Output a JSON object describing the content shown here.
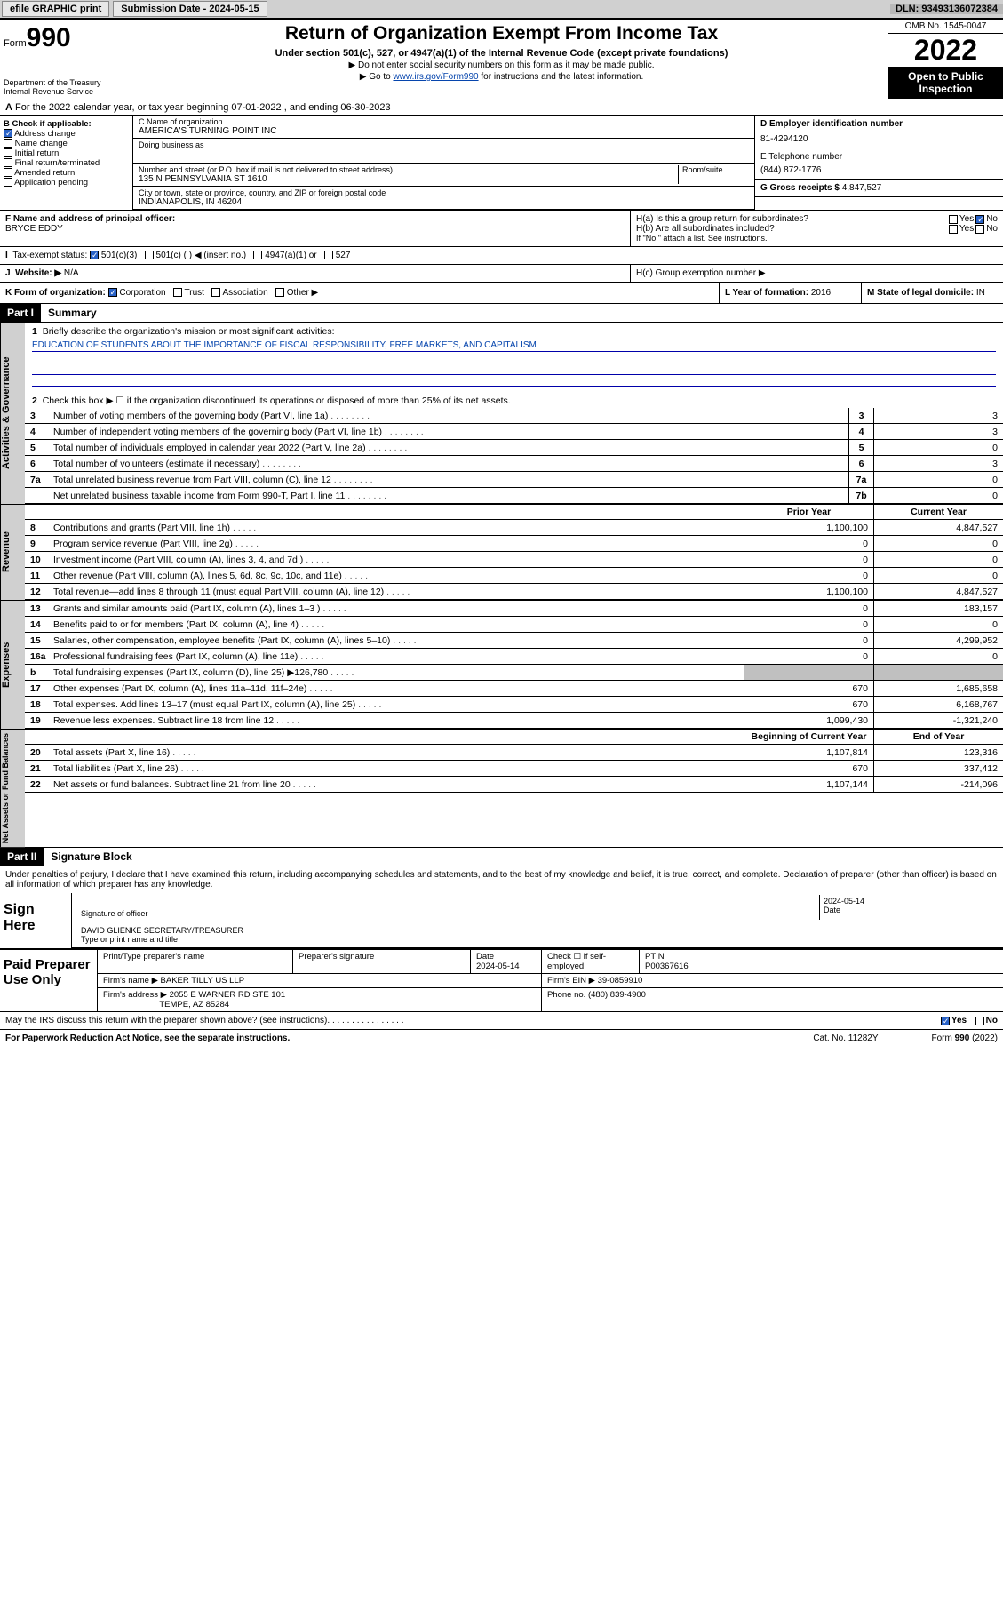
{
  "topbar": {
    "efile": "efile GRAPHIC print",
    "subdate_label": "Submission Date - ",
    "subdate": "2024-05-15",
    "dln_label": "DLN: ",
    "dln": "93493136072384"
  },
  "header": {
    "form_word": "Form",
    "form_num": "990",
    "dept": "Department of the Treasury\nInternal Revenue Service",
    "title": "Return of Organization Exempt From Income Tax",
    "sub": "Under section 501(c), 527, or 4947(a)(1) of the Internal Revenue Code (except private foundations)",
    "note1": "▶ Do not enter social security numbers on this form as it may be made public.",
    "note2_pre": "▶ Go to ",
    "note2_link": "www.irs.gov/Form990",
    "note2_post": " for instructions and the latest information.",
    "omb": "OMB No. 1545-0047",
    "year": "2022",
    "open": "Open to Public Inspection"
  },
  "a_line": "For the 2022 calendar year, or tax year beginning 07-01-2022   , and ending 06-30-2023",
  "b": {
    "label": "B Check if applicable:",
    "opts": [
      "Address change",
      "Name change",
      "Initial return",
      "Final return/terminated",
      "Amended return",
      "Application pending"
    ],
    "checked_idx": 0
  },
  "c": {
    "name_lbl": "C Name of organization",
    "name": "AMERICA'S TURNING POINT INC",
    "dba_lbl": "Doing business as",
    "street_lbl": "Number and street (or P.O. box if mail is not delivered to street address)",
    "room_lbl": "Room/suite",
    "street": "135 N PENNSYLVANIA ST 1610",
    "city_lbl": "City or town, state or province, country, and ZIP or foreign postal code",
    "city": "INDIANAPOLIS, IN  46204"
  },
  "d": {
    "ein_lbl": "D Employer identification number",
    "ein": "81-4294120",
    "tel_lbl": "E Telephone number",
    "tel": "(844) 872-1776",
    "gross_lbl": "G Gross receipts $ ",
    "gross": "4,847,527"
  },
  "f": {
    "lbl": "F Name and address of principal officer:",
    "name": "BRYCE EDDY"
  },
  "h": {
    "a": "H(a)  Is this a group return for subordinates?",
    "b": "H(b)  Are all subordinates included?",
    "note": "If \"No,\" attach a list. See instructions.",
    "c": "H(c)  Group exemption number ▶",
    "yes": "Yes",
    "no": "No"
  },
  "i": {
    "lbl": "Tax-exempt status:",
    "opts": [
      "501(c)(3)",
      "501(c) (   ) ◀ (insert no.)",
      "4947(a)(1) or",
      "527"
    ],
    "checked_idx": 0
  },
  "j": {
    "lbl": "Website: ▶",
    "val": "N/A"
  },
  "k": {
    "lbl": "K Form of organization:",
    "opts": [
      "Corporation",
      "Trust",
      "Association",
      "Other ▶"
    ],
    "checked_idx": 0
  },
  "l": {
    "lbl": "L Year of formation: ",
    "val": "2016"
  },
  "m": {
    "lbl": "M State of legal domicile: ",
    "val": "IN"
  },
  "part1": {
    "label": "Part I",
    "title": "Summary"
  },
  "mission": {
    "lead": "Briefly describe the organization's mission or most significant activities:",
    "text": "EDUCATION OF STUDENTS ABOUT THE IMPORTANCE OF FISCAL RESPONSIBILITY, FREE MARKETS, AND CAPITALISM"
  },
  "line2": "Check this box ▶ ☐  if the organization discontinued its operations or disposed of more than 25% of its net assets.",
  "gov_lines": [
    {
      "n": "3",
      "d": "Number of voting members of the governing body (Part VI, line 1a)",
      "box": "3",
      "v": "3"
    },
    {
      "n": "4",
      "d": "Number of independent voting members of the governing body (Part VI, line 1b)",
      "box": "4",
      "v": "3"
    },
    {
      "n": "5",
      "d": "Total number of individuals employed in calendar year 2022 (Part V, line 2a)",
      "box": "5",
      "v": "0"
    },
    {
      "n": "6",
      "d": "Total number of volunteers (estimate if necessary)",
      "box": "6",
      "v": "3"
    },
    {
      "n": "7a",
      "d": "Total unrelated business revenue from Part VIII, column (C), line 12",
      "box": "7a",
      "v": "0"
    },
    {
      "n": "",
      "d": "Net unrelated business taxable income from Form 990-T, Part I, line 11",
      "box": "7b",
      "v": "0"
    }
  ],
  "cols": {
    "prior": "Prior Year",
    "current": "Current Year",
    "beg": "Beginning of Current Year",
    "end": "End of Year"
  },
  "rev_lines": [
    {
      "n": "8",
      "d": "Contributions and grants (Part VIII, line 1h)",
      "p": "1,100,100",
      "c": "4,847,527"
    },
    {
      "n": "9",
      "d": "Program service revenue (Part VIII, line 2g)",
      "p": "0",
      "c": "0"
    },
    {
      "n": "10",
      "d": "Investment income (Part VIII, column (A), lines 3, 4, and 7d )",
      "p": "0",
      "c": "0"
    },
    {
      "n": "11",
      "d": "Other revenue (Part VIII, column (A), lines 5, 6d, 8c, 9c, 10c, and 11e)",
      "p": "0",
      "c": "0"
    },
    {
      "n": "12",
      "d": "Total revenue—add lines 8 through 11 (must equal Part VIII, column (A), line 12)",
      "p": "1,100,100",
      "c": "4,847,527"
    }
  ],
  "exp_lines": [
    {
      "n": "13",
      "d": "Grants and similar amounts paid (Part IX, column (A), lines 1–3 )",
      "p": "0",
      "c": "183,157"
    },
    {
      "n": "14",
      "d": "Benefits paid to or for members (Part IX, column (A), line 4)",
      "p": "0",
      "c": "0"
    },
    {
      "n": "15",
      "d": "Salaries, other compensation, employee benefits (Part IX, column (A), lines 5–10)",
      "p": "0",
      "c": "4,299,952"
    },
    {
      "n": "16a",
      "d": "Professional fundraising fees (Part IX, column (A), line 11e)",
      "p": "0",
      "c": "0"
    },
    {
      "n": "b",
      "d": "Total fundraising expenses (Part IX, column (D), line 25) ▶126,780",
      "p": "",
      "c": "",
      "gray": true
    },
    {
      "n": "17",
      "d": "Other expenses (Part IX, column (A), lines 11a–11d, 11f–24e)",
      "p": "670",
      "c": "1,685,658"
    },
    {
      "n": "18",
      "d": "Total expenses. Add lines 13–17 (must equal Part IX, column (A), line 25)",
      "p": "670",
      "c": "6,168,767"
    },
    {
      "n": "19",
      "d": "Revenue less expenses. Subtract line 18 from line 12",
      "p": "1,099,430",
      "c": "-1,321,240"
    }
  ],
  "net_lines": [
    {
      "n": "20",
      "d": "Total assets (Part X, line 16)",
      "p": "1,107,814",
      "c": "123,316"
    },
    {
      "n": "21",
      "d": "Total liabilities (Part X, line 26)",
      "p": "670",
      "c": "337,412"
    },
    {
      "n": "22",
      "d": "Net assets or fund balances. Subtract line 21 from line 20",
      "p": "1,107,144",
      "c": "-214,096"
    }
  ],
  "side_labels": {
    "gov": "Activities & Governance",
    "rev": "Revenue",
    "exp": "Expenses",
    "net": "Net Assets or Fund Balances"
  },
  "part2": {
    "label": "Part II",
    "title": "Signature Block"
  },
  "penalty": "Under penalties of perjury, I declare that I have examined this return, including accompanying schedules and statements, and to the best of my knowledge and belief, it is true, correct, and complete. Declaration of preparer (other than officer) is based on all information of which preparer has any knowledge.",
  "sign": {
    "here": "Sign Here",
    "sig_lbl": "Signature of officer",
    "date_lbl": "Date",
    "date": "2024-05-14",
    "name": "DAVID GLIENKE  SECRETARY/TREASURER",
    "name_lbl": "Type or print name and title"
  },
  "paid": {
    "label": "Paid Preparer Use Only",
    "h": [
      "Print/Type preparer's name",
      "Preparer's signature",
      "Date",
      "Check ☐ if self-employed",
      "PTIN"
    ],
    "date": "2024-05-14",
    "ptin": "P00367616",
    "firm_lbl": "Firm's name    ▶",
    "firm": "BAKER TILLY US LLP",
    "ein_lbl": "Firm's EIN ▶ ",
    "ein": "39-0859910",
    "addr_lbl": "Firm's address ▶",
    "addr1": "2055 E WARNER RD STE 101",
    "addr2": "TEMPE, AZ  85284",
    "phone_lbl": "Phone no. ",
    "phone": "(480) 839-4900"
  },
  "discuss": "May the IRS discuss this return with the preparer shown above? (see instructions)",
  "footer": {
    "pra": "For Paperwork Reduction Act Notice, see the separate instructions.",
    "cat": "Cat. No. 11282Y",
    "form": "Form 990 (2022)"
  }
}
